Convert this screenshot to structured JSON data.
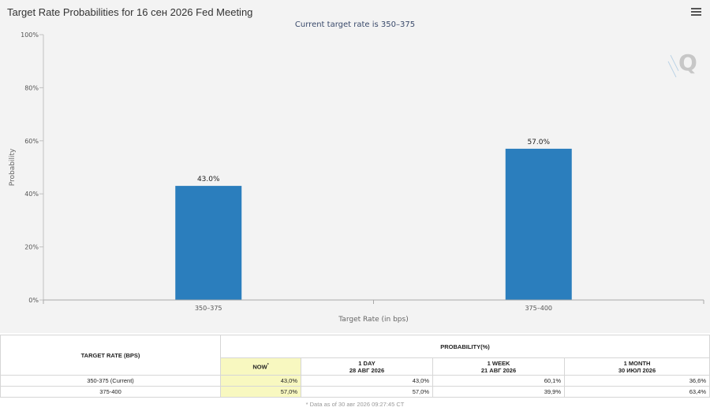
{
  "header": {
    "title": "Target Rate Probabilities for 16 сен 2026 Fed Meeting",
    "subtitle": "Current target rate is 350–375"
  },
  "chart_data": {
    "type": "bar",
    "title": "Target Rate Probabilities for 16 сен 2026 Fed Meeting",
    "subtitle": "Current target rate is 350–375",
    "categories": [
      "350–375",
      "375–400"
    ],
    "values": [
      43.0,
      57.0
    ],
    "data_labels": [
      "43.0%",
      "57.0%"
    ],
    "xlabel": "Target Rate (in bps)",
    "ylabel": "Probability",
    "ylim": [
      0,
      100
    ],
    "yticks": [
      0,
      20,
      40,
      60,
      80,
      100
    ],
    "ytick_labels": [
      "0%",
      "20%",
      "40%",
      "60%",
      "80%",
      "100%"
    ],
    "bar_color": "#2b7ebd",
    "grid": false,
    "legend": "none"
  },
  "watermark": {
    "letter": "Q"
  },
  "table": {
    "col_rate": "TARGET RATE (BPS)",
    "col_prob": "PROBABILITY(%)",
    "sub_headers": [
      {
        "label": "NOW",
        "marker": "*",
        "date": ""
      },
      {
        "label": "1 DAY",
        "date": "28 АВГ 2026"
      },
      {
        "label": "1 WEEK",
        "date": "21 АВГ 2026"
      },
      {
        "label": "1 MONTH",
        "date": "30 ИЮЛ 2026"
      }
    ],
    "rows": [
      {
        "rate": "350-375 (Current)",
        "now": "43,0%",
        "day": "43,0%",
        "week": "60,1%",
        "month": "36,6%"
      },
      {
        "rate": "375-400",
        "now": "57,0%",
        "day": "57,0%",
        "week": "39,9%",
        "month": "63,4%"
      }
    ],
    "footnote": "* Data as of 30 авг 2026 09:27:45 CT"
  }
}
